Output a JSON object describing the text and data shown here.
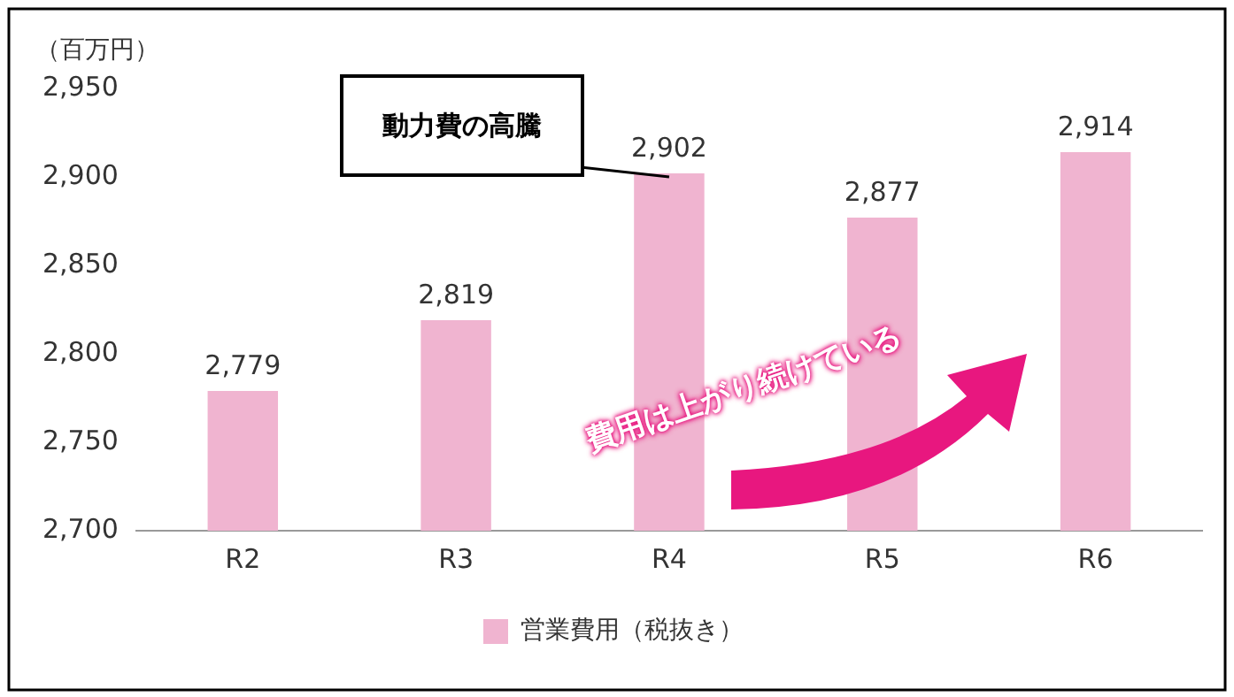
{
  "chart_data": {
    "type": "bar",
    "ylabel": "（百万円）",
    "categories": [
      "R2",
      "R3",
      "R4",
      "R5",
      "R6"
    ],
    "series": [
      {
        "name": "営業費用（税抜き）",
        "color": "#f0b4d0",
        "values": [
          2779,
          2819,
          2902,
          2877,
          2914
        ],
        "value_labels": [
          "2,779",
          "2,819",
          "2,902",
          "2,877",
          "2,914"
        ]
      }
    ],
    "ylim": [
      2700,
      2950
    ],
    "yticks": [
      {
        "value": 2700,
        "label": "2,700"
      },
      {
        "value": 2750,
        "label": "2,750"
      },
      {
        "value": 2800,
        "label": "2,800"
      },
      {
        "value": 2850,
        "label": "2,850"
      },
      {
        "value": 2900,
        "label": "2,900"
      },
      {
        "value": 2950,
        "label": "2,950"
      }
    ],
    "annotations": [
      {
        "text": "動力費の高騰",
        "x": "R4",
        "y": 2902
      },
      "費用は上がり続けている"
    ],
    "grid": false,
    "legend": "bottom"
  }
}
